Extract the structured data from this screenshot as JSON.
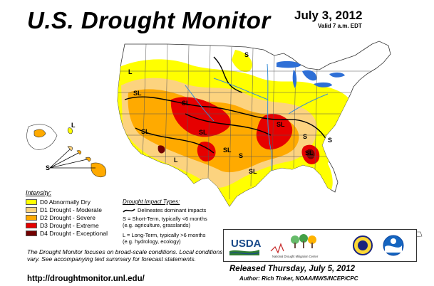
{
  "header": {
    "title": "U.S. Drought Monitor",
    "date": "July 3, 2012",
    "valid": "Valid 7 a.m. EDT"
  },
  "legend": {
    "heading": "Intensity:",
    "items": [
      {
        "label": "D0 Abnormally Dry",
        "color": "#ffff00"
      },
      {
        "label": "D1 Drought - Moderate",
        "color": "#fcd37f"
      },
      {
        "label": "D2 Drought - Severe",
        "color": "#ffaa00"
      },
      {
        "label": "D3 Drought - Extreme",
        "color": "#e60000"
      },
      {
        "label": "D4 Drought - Exceptional",
        "color": "#730000"
      }
    ]
  },
  "impact": {
    "heading": "Drought Impact Types:",
    "line_label": "Delineates dominant impacts",
    "short_term": [
      "S = Short-Term, typically <6 months",
      "(e.g. agriculture, grasslands)"
    ],
    "long_term": [
      "L = Long-Term, typically >6 months",
      "(e.g. hydrology, ecology)"
    ]
  },
  "map_labels": {
    "short": "S",
    "long": "L",
    "short_long": "SL"
  },
  "note": "The Drought Monitor focuses on broad-scale conditions. Local conditions may vary. See accompanying text summary for forecast statements.",
  "url": "http://droughtmonitor.unl.edu/",
  "logos": {
    "usda": "USDA",
    "ndmc": "National Drought Mitigation Center"
  },
  "released": "Released Thursday, July 5, 2012",
  "author": "Author: Rich Tinker, NOAA/NWS/NCEP/CPC"
}
